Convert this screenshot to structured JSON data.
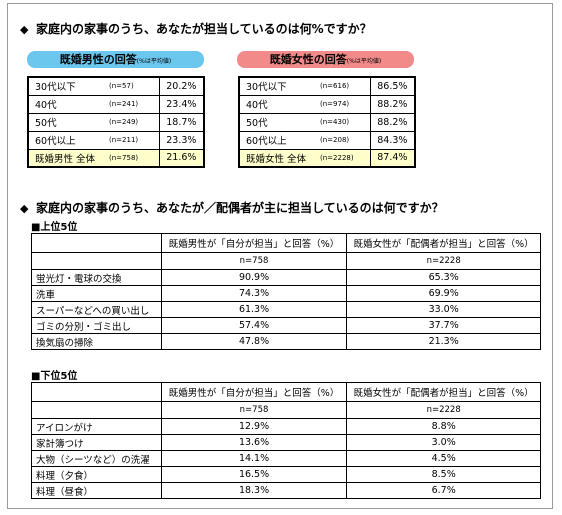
{
  "q1": "家庭内の家事のうち、あなたが担当しているのは何%ですか？",
  "q2": "家庭内の家事のうち、あなたが／配偶者が主に担当しているのは何ですか？",
  "male": {
    "title": "既婚男性の回答",
    "note": "(%は平均値)",
    "rows": [
      {
        "label": "30代以下",
        "n": "(n=57)",
        "value": "20.2%"
      },
      {
        "label": "40代",
        "n": "(n=241)",
        "value": "23.4%"
      },
      {
        "label": "50代",
        "n": "(n=249)",
        "value": "18.7%"
      },
      {
        "label": "60代以上",
        "n": "(n=211)",
        "value": "23.3%"
      },
      {
        "label": "既婚男性 全体",
        "n": "(n=758)",
        "value": "21.6%"
      }
    ]
  },
  "female": {
    "title": "既婚女性の回答",
    "note": "(%は平均値)",
    "rows": [
      {
        "label": "30代以下",
        "n": "(n=616)",
        "value": "86.5%"
      },
      {
        "label": "40代",
        "n": "(n=974)",
        "value": "88.2%"
      },
      {
        "label": "50代",
        "n": "(n=430)",
        "value": "88.2%"
      },
      {
        "label": "60代以上",
        "n": "(n=208)",
        "value": "84.3%"
      },
      {
        "label": "既婚女性 全体",
        "n": "(n=2228)",
        "value": "87.4%"
      }
    ]
  },
  "top5": {
    "title": "■上位5位",
    "col1": "既婚男性が「自分が担当」と回答（%）",
    "col2": "既婚女性が「配偶者が担当」と回答（%）",
    "n1": "n=758",
    "n2": "n=2228",
    "rows": [
      {
        "item": "蛍光灯・電球の交換",
        "v1": "90.9%",
        "v2": "65.3%"
      },
      {
        "item": "洗車",
        "v1": "74.3%",
        "v2": "69.9%"
      },
      {
        "item": "スーパーなどへの買い出し",
        "v1": "61.3%",
        "v2": "33.0%"
      },
      {
        "item": "ゴミの分別・ゴミ出し",
        "v1": "57.4%",
        "v2": "37.7%"
      },
      {
        "item": "換気扇の掃除",
        "v1": "47.8%",
        "v2": "21.3%"
      }
    ]
  },
  "bottom5": {
    "title": "■下位5位",
    "col1": "既婚男性が「自分が担当」と回答（%）",
    "col2": "既婚女性が「配偶者が担当」と回答（%）",
    "n1": "n=758",
    "n2": "n=2228",
    "rows": [
      {
        "item": "アイロンがけ",
        "v1": "12.9%",
        "v2": "8.8%"
      },
      {
        "item": "家計簿つけ",
        "v1": "13.6%",
        "v2": "3.0%"
      },
      {
        "item": "大物（シーツなど）の洗濯",
        "v1": "14.1%",
        "v2": "4.5%"
      },
      {
        "item": "料理（夕食）",
        "v1": "16.5%",
        "v2": "8.5%"
      },
      {
        "item": "料理（昼食）",
        "v1": "18.3%",
        "v2": "6.7%"
      }
    ]
  }
}
